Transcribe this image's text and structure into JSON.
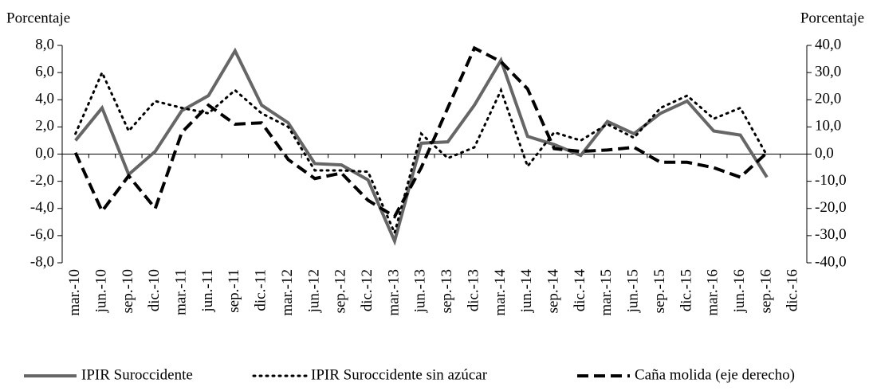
{
  "chart_data": {
    "type": "line",
    "y_label": "Porcentaje",
    "y2_label": "Porcentaje",
    "categories": [
      "mar.-10",
      "jun.-10",
      "sep.-10",
      "dic.-10",
      "mar.-11",
      "jun.-11",
      "sep.-11",
      "dic.-11",
      "mar.-12",
      "jun.-12",
      "sep.-12",
      "dic.-12",
      "mar.-13",
      "jun.-13",
      "sep.-13",
      "dic.-13",
      "mar.-14",
      "jun.-14",
      "sep.-14",
      "dic.-14",
      "mar.-15",
      "jun.-15",
      "sep.-15",
      "dic.-15",
      "mar.-16",
      "jun.-16",
      "sep.-16",
      "dic.-16"
    ],
    "series": [
      {
        "name": "IPIR Suroccidente",
        "color": "#666666",
        "dash": "solid",
        "axis": "y",
        "values": [
          1.0,
          3.4,
          -1.5,
          0.2,
          3.2,
          4.3,
          7.6,
          3.6,
          2.3,
          -0.7,
          -0.8,
          -1.9,
          -6.4,
          0.8,
          0.9,
          3.6,
          6.9,
          1.3,
          0.7,
          -0.1,
          2.4,
          1.5,
          3.0,
          3.9,
          1.7,
          1.4,
          -1.7,
          null
        ]
      },
      {
        "name": "IPIR Suroccidente sin azúcar",
        "color": "#000000",
        "dash": "dotted",
        "axis": "y",
        "values": [
          1.5,
          6.0,
          1.7,
          3.9,
          3.4,
          3.0,
          4.7,
          3.0,
          2.0,
          -1.2,
          -1.2,
          -1.3,
          -5.8,
          1.5,
          -0.3,
          0.5,
          4.7,
          -0.9,
          1.6,
          1.0,
          2.2,
          1.2,
          3.4,
          4.3,
          2.6,
          3.4,
          -0.1,
          null
        ]
      },
      {
        "name": "Caña molida (eje derecho)",
        "color": "#000000",
        "dash": "dashed",
        "axis": "y2",
        "values": [
          0.5,
          -21,
          -8,
          -20,
          8,
          18,
          11,
          11.5,
          -2,
          -9,
          -7,
          -17,
          -23,
          -5,
          17,
          39,
          34,
          24,
          2,
          1,
          1.5,
          2.5,
          -3,
          -3,
          -5,
          -8.5,
          0.5,
          null
        ]
      }
    ],
    "ylim": [
      -8,
      8
    ],
    "yticks": [
      {
        "value": -8,
        "label": "-8,0"
      },
      {
        "value": -6,
        "label": "-6,0"
      },
      {
        "value": -4,
        "label": "-4,0"
      },
      {
        "value": -2,
        "label": "-2,0"
      },
      {
        "value": 0,
        "label": "0,0"
      },
      {
        "value": 2,
        "label": "2,0"
      },
      {
        "value": 4,
        "label": "4,0"
      },
      {
        "value": 6,
        "label": "6,0"
      },
      {
        "value": 8,
        "label": "8,0"
      }
    ],
    "y2lim": [
      -40,
      40
    ],
    "y2ticks": [
      {
        "value": -40,
        "label": "-40,0"
      },
      {
        "value": -30,
        "label": "-30,0"
      },
      {
        "value": -20,
        "label": "-20,0"
      },
      {
        "value": -10,
        "label": "-10,0"
      },
      {
        "value": 0,
        "label": "0,0"
      },
      {
        "value": 10,
        "label": "10,0"
      },
      {
        "value": 20,
        "label": "20,0"
      },
      {
        "value": 30,
        "label": "30,0"
      },
      {
        "value": 40,
        "label": "40,0"
      }
    ],
    "legend": "bottom"
  }
}
